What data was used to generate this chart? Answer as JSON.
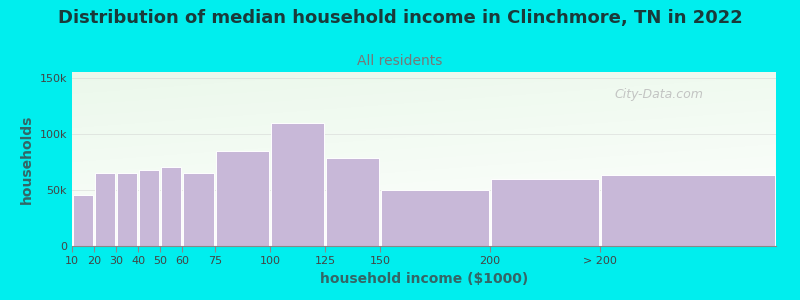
{
  "title": "Distribution of median household income in Clinchmore, TN in 2022",
  "subtitle": "All residents",
  "xlabel": "household income ($1000)",
  "ylabel": "households",
  "watermark": "City-Data.com",
  "bar_labels": [
    "10",
    "20",
    "30",
    "40",
    "50",
    "60",
    "75",
    "100",
    "125",
    "150",
    "200",
    "> 200"
  ],
  "bar_values": [
    45000,
    65000,
    65000,
    68000,
    70000,
    65000,
    85000,
    110000,
    78000,
    50000,
    60000,
    63000
  ],
  "bar_widths": [
    10,
    10,
    10,
    10,
    10,
    15,
    25,
    25,
    25,
    50,
    50,
    80
  ],
  "bar_lefts": [
    10,
    20,
    30,
    40,
    50,
    60,
    75,
    100,
    125,
    150,
    200,
    250
  ],
  "bar_color": "#c8b8d8",
  "bar_edgecolor": "#ffffff",
  "background_outer": "#00EEEE",
  "ylim": [
    0,
    155000
  ],
  "yticks": [
    0,
    50000,
    100000,
    150000
  ],
  "ytick_labels": [
    "0",
    "50k",
    "100k",
    "150k"
  ],
  "title_fontsize": 13,
  "subtitle_fontsize": 10,
  "title_color": "#1a3a3a",
  "subtitle_color": "#777777",
  "axis_label_fontsize": 10,
  "tick_fontsize": 8,
  "watermark_color": "#aaaaaa",
  "xlim_left": 10,
  "xlim_right": 330
}
